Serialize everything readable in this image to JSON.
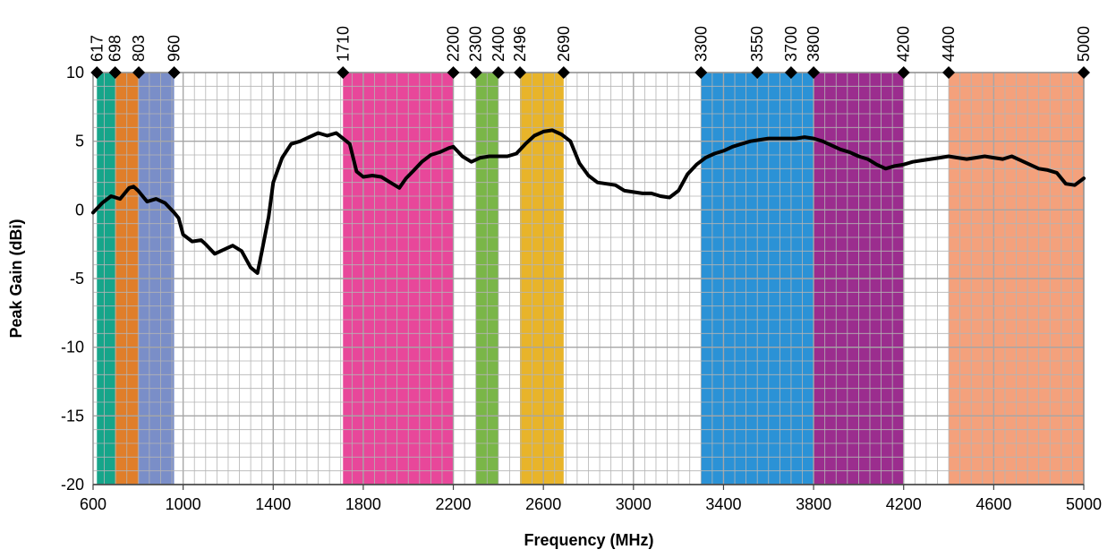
{
  "chart_data": {
    "type": "line",
    "title": "",
    "xlabel": "Frequency (MHz)",
    "ylabel": "Peak Gain (dBi)",
    "xlim": [
      600,
      5000
    ],
    "ylim": [
      -20,
      10
    ],
    "grid": true,
    "minor_grid": true,
    "x_ticks": [
      600,
      1000,
      1400,
      1800,
      2200,
      2600,
      3000,
      3400,
      3800,
      4200,
      4600,
      5000
    ],
    "y_ticks": [
      -20,
      -15,
      -10,
      -5,
      0,
      5,
      10
    ],
    "top_markers": [
      617,
      698,
      803,
      960,
      1710,
      2200,
      2300,
      2400,
      2496,
      2690,
      3300,
      3550,
      3700,
      3800,
      4200,
      4400,
      5000
    ],
    "bands": [
      {
        "start": 617,
        "end": 698,
        "color": "#16a58a"
      },
      {
        "start": 698,
        "end": 803,
        "color": "#e07e2a"
      },
      {
        "start": 803,
        "end": 960,
        "color": "#7a8ec8"
      },
      {
        "start": 1710,
        "end": 2200,
        "color": "#e8479a"
      },
      {
        "start": 2300,
        "end": 2400,
        "color": "#7ab648"
      },
      {
        "start": 2496,
        "end": 2690,
        "color": "#e8b42a"
      },
      {
        "start": 3300,
        "end": 3800,
        "color": "#2b92d6"
      },
      {
        "start": 3800,
        "end": 4200,
        "color": "#9b2d8e"
      },
      {
        "start": 4400,
        "end": 5000,
        "color": "#f4a17c"
      }
    ],
    "series": [
      {
        "color": "#000000",
        "x": [
          600,
          640,
          680,
          720,
          760,
          780,
          800,
          840,
          880,
          920,
          960,
          980,
          1000,
          1040,
          1080,
          1100,
          1140,
          1180,
          1220,
          1260,
          1300,
          1330,
          1350,
          1380,
          1400,
          1440,
          1480,
          1520,
          1560,
          1600,
          1640,
          1680,
          1710,
          1740,
          1770,
          1800,
          1840,
          1880,
          1920,
          1960,
          1990,
          2020,
          2060,
          2100,
          2140,
          2180,
          2200,
          2240,
          2280,
          2320,
          2360,
          2400,
          2440,
          2480,
          2520,
          2560,
          2600,
          2640,
          2680,
          2720,
          2760,
          2800,
          2840,
          2880,
          2920,
          2960,
          3000,
          3040,
          3080,
          3120,
          3160,
          3200,
          3240,
          3280,
          3320,
          3360,
          3400,
          3440,
          3480,
          3520,
          3560,
          3600,
          3640,
          3680,
          3720,
          3760,
          3800,
          3840,
          3880,
          3920,
          3960,
          4000,
          4040,
          4080,
          4120,
          4160,
          4200,
          4240,
          4280,
          4320,
          4360,
          4400,
          4440,
          4480,
          4520,
          4560,
          4600,
          4640,
          4680,
          4720,
          4760,
          4800,
          4840,
          4880,
          4920,
          4960,
          5000
        ],
        "y": [
          -0.2,
          0.5,
          1.0,
          0.8,
          1.6,
          1.7,
          1.4,
          0.6,
          0.8,
          0.5,
          -0.2,
          -0.6,
          -1.8,
          -2.3,
          -2.2,
          -2.5,
          -3.2,
          -2.9,
          -2.6,
          -3.0,
          -4.2,
          -4.6,
          -3.0,
          -0.5,
          2.0,
          3.8,
          4.8,
          5.0,
          5.3,
          5.6,
          5.4,
          5.6,
          5.2,
          4.8,
          2.8,
          2.4,
          2.5,
          2.4,
          2.0,
          1.6,
          2.3,
          2.8,
          3.5,
          4.0,
          4.2,
          4.5,
          4.6,
          3.9,
          3.5,
          3.8,
          3.9,
          3.9,
          3.9,
          4.1,
          4.8,
          5.4,
          5.7,
          5.8,
          5.5,
          5.0,
          3.4,
          2.5,
          2.0,
          1.9,
          1.8,
          1.4,
          1.3,
          1.2,
          1.2,
          1.0,
          0.9,
          1.4,
          2.6,
          3.3,
          3.8,
          4.1,
          4.3,
          4.6,
          4.8,
          5.0,
          5.1,
          5.2,
          5.2,
          5.2,
          5.2,
          5.3,
          5.2,
          5.0,
          4.7,
          4.4,
          4.2,
          3.9,
          3.7,
          3.3,
          3.0,
          3.2,
          3.3,
          3.5,
          3.6,
          3.7,
          3.8,
          3.9,
          3.8,
          3.7,
          3.8,
          3.9,
          3.8,
          3.7,
          3.9,
          3.6,
          3.3,
          3.0,
          2.9,
          2.7,
          1.9,
          1.8,
          2.3
        ]
      }
    ]
  }
}
